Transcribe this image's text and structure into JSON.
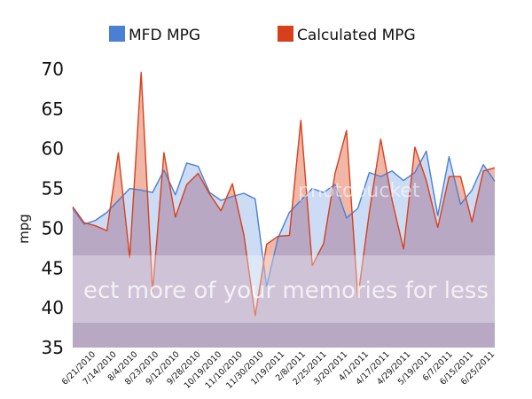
{
  "colors": {
    "mfd_line": "#4a7fd4",
    "mfd_fill": "#c7d8f3",
    "calc_line": "#d8401c",
    "calc_fill": "#f0b6a6",
    "overlap_fill": "#b8a8c4",
    "watermark_band": "#ffffff"
  },
  "watermark": {
    "brand": "photobucket",
    "message": "ect more of your memories for less"
  },
  "chart_data": {
    "type": "area",
    "ylabel": "mpg",
    "ylim": [
      35,
      70
    ],
    "yticks": [
      35,
      40,
      45,
      50,
      55,
      60,
      65,
      70
    ],
    "xtick_labels": [
      "6/21/2010",
      "7/14/2010",
      "8/4/2010",
      "8/23/2010",
      "9/12/2010",
      "9/28/2010",
      "10/19/2010",
      "11/10/2010",
      "11/30/2010",
      "1/19/2011",
      "2/8/2011",
      "2/25/2011",
      "3/20/2011",
      "4/1/2011",
      "4/17/2011",
      "4/29/2011",
      "5/19/2011",
      "6/7/2011",
      "6/15/2011",
      "6/25/2011"
    ],
    "legend_position": "top",
    "series": [
      {
        "name": "MFD MPG",
        "color": "#4a7fd4",
        "values": [
          52.5,
          50.5,
          51,
          52,
          53.5,
          55,
          54.8,
          54.5,
          57.3,
          54.2,
          58.2,
          57.8,
          54.5,
          53.5,
          54,
          54.4,
          53.7,
          42.7,
          48.8,
          52,
          53.5,
          55,
          54.5,
          55.5,
          51.3,
          52.5,
          57,
          56.5,
          57.2,
          56,
          57,
          59.7,
          51.6,
          59,
          53,
          54.8,
          58,
          55.9
        ]
      },
      {
        "name": "Calculated MPG",
        "color": "#d8401c",
        "values": [
          52.7,
          50.7,
          50.3,
          49.7,
          59.5,
          46.3,
          69.6,
          42,
          59.5,
          51.4,
          55.5,
          56.9,
          54.3,
          52.2,
          55.6,
          49.2,
          39,
          48,
          49,
          49.1,
          63.6,
          45.3,
          48.1,
          56.9,
          62.3,
          41.3,
          52,
          61.2,
          53.5,
          47.4,
          60.2,
          56,
          50.1,
          56.5,
          56.5,
          50.8,
          57.2,
          57.6
        ]
      }
    ]
  }
}
